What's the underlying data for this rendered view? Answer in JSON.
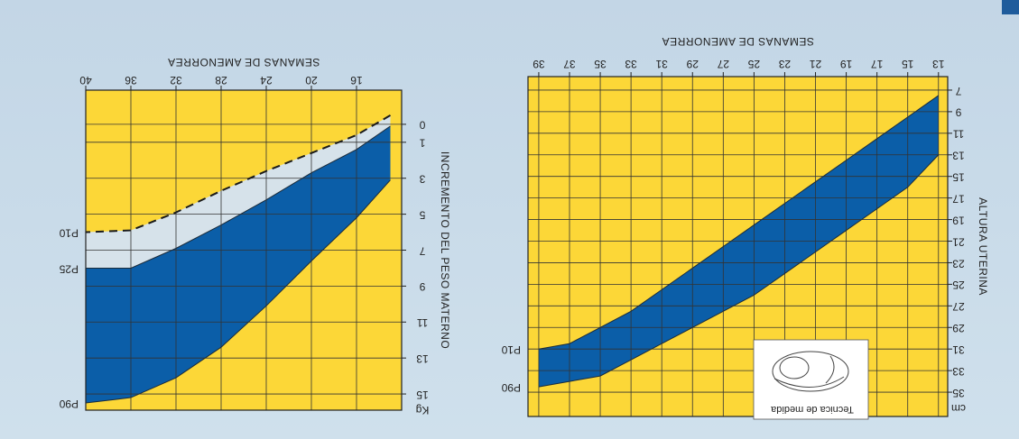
{
  "chart_data": [
    {
      "type": "area",
      "ylabel": "ALTURA UTERINA",
      "xlabel": "SEMANAS DE AMENORREA",
      "y_unit": "cm",
      "annotation": "Tecnica de medida",
      "x": [
        13,
        15,
        17,
        19,
        21,
        23,
        25,
        27,
        29,
        31,
        33,
        35,
        37,
        39
      ],
      "series": [
        {
          "name": "P10",
          "color": "#0b5ea8",
          "values": [
            7.5,
            9.5,
            11.5,
            13.5,
            15.5,
            17.5,
            19.5,
            21.5,
            23.5,
            25.5,
            27.5,
            29,
            30.5,
            31
          ]
        },
        {
          "name": "P90",
          "color": "#0b5ea8",
          "values": [
            13,
            16,
            18,
            20,
            22,
            24,
            26,
            27.5,
            29,
            30.5,
            32,
            33.5,
            34,
            34.5
          ]
        }
      ],
      "xlim": [
        12.4,
        39.7
      ],
      "ylim": [
        5.75,
        37.25
      ],
      "xticks": [
        13,
        15,
        17,
        19,
        21,
        23,
        25,
        27,
        29,
        31,
        33,
        35,
        37,
        39
      ],
      "yticks": [
        7,
        9,
        11,
        13,
        15,
        17,
        19,
        21,
        23,
        25,
        27,
        29,
        31,
        33,
        35
      ],
      "grid": true,
      "background": "#fcd737"
    },
    {
      "type": "area",
      "ylabel": "INCREMENTO DEL PESO MATERNO",
      "xlabel": "SEMANAS DE AMENORREA",
      "y_unit": "Kg",
      "x": [
        13,
        16,
        20,
        24,
        28,
        32,
        36,
        40
      ],
      "series": [
        {
          "name": "P10",
          "color": "#1a1a1a",
          "line_style": "dashed",
          "values": [
            -0.5,
            0.6,
            1.6,
            2.6,
            3.7,
            4.9,
            5.9,
            6.0
          ]
        },
        {
          "name": "P25",
          "color": "#d6e2ea",
          "values": [
            0.1,
            1.4,
            2.7,
            4.2,
            5.6,
            6.9,
            8.0,
            8.0
          ]
        },
        {
          "name": "P90",
          "color": "#0b5ea8",
          "values": [
            3.1,
            5.2,
            7.6,
            10.1,
            12.4,
            14.1,
            15.2,
            15.5
          ]
        }
      ],
      "xlim": [
        12,
        40
      ],
      "ylim": [
        -1.9,
        15.9
      ],
      "xticks": [
        16,
        20,
        24,
        28,
        32,
        36,
        40
      ],
      "yticks": [
        0,
        1,
        3,
        5,
        7,
        9,
        11,
        13,
        15
      ],
      "grid": true,
      "background": "#fcd737"
    }
  ]
}
